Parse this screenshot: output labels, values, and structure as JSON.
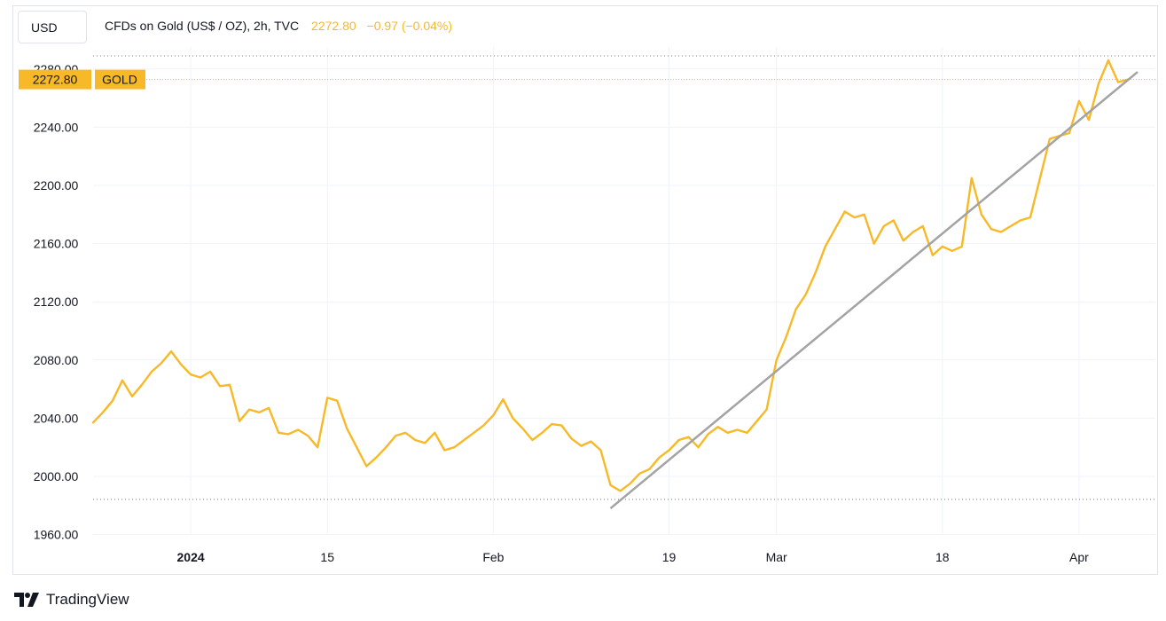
{
  "currency_button": {
    "label": "USD"
  },
  "legend": {
    "title": "CFDs on Gold (US$ / OZ), 2h, TVC",
    "price": "2272.80",
    "change": "−0.97 (−0.04%)"
  },
  "price_tag": {
    "value": "2272.80",
    "symbol": "GOLD"
  },
  "brand": {
    "name": "TradingView"
  },
  "colors": {
    "line": "#f7b928",
    "trend": "#a3a3a3",
    "grid": "#f0f3fa",
    "axis_text": "#131722"
  },
  "chart_data": {
    "type": "line",
    "title": "CFDs on Gold (US$ / OZ), 2h, TVC",
    "xlabel": "",
    "ylabel": "",
    "grid": true,
    "ylim": [
      1960,
      2290
    ],
    "y_ticks": [
      "1960.00",
      "2000.00",
      "2040.00",
      "2080.00",
      "2120.00",
      "2160.00",
      "2200.00",
      "2240.00",
      "2280.00"
    ],
    "y_tick_values": [
      1960,
      2000,
      2040,
      2080,
      2120,
      2160,
      2200,
      2240,
      2280
    ],
    "x_range": [
      "2023-12-22",
      "2024-04-07"
    ],
    "x_ticks": [
      {
        "label": "2024",
        "date": "2024-01-01",
        "bold": true
      },
      {
        "label": "15",
        "date": "2024-01-15"
      },
      {
        "label": "Feb",
        "date": "2024-02-01"
      },
      {
        "label": "19",
        "date": "2024-02-19"
      },
      {
        "label": "Mar",
        "date": "2024-03-01"
      },
      {
        "label": "18",
        "date": "2024-03-18"
      },
      {
        "label": "Apr",
        "date": "2024-04-01"
      }
    ],
    "series": [
      {
        "name": "GOLD",
        "points": [
          [
            "2023-12-22",
            2037
          ],
          [
            "2023-12-23",
            2044
          ],
          [
            "2023-12-24",
            2052
          ],
          [
            "2023-12-25",
            2066
          ],
          [
            "2023-12-26",
            2055
          ],
          [
            "2023-12-27",
            2063
          ],
          [
            "2023-12-28",
            2072
          ],
          [
            "2023-12-29",
            2078
          ],
          [
            "2023-12-30",
            2086
          ],
          [
            "2023-12-31",
            2077
          ],
          [
            "2024-01-01",
            2070
          ],
          [
            "2024-01-02",
            2068
          ],
          [
            "2024-01-03",
            2072
          ],
          [
            "2024-01-04",
            2062
          ],
          [
            "2024-01-05",
            2063
          ],
          [
            "2024-01-06",
            2038
          ],
          [
            "2024-01-07",
            2046
          ],
          [
            "2024-01-08",
            2044
          ],
          [
            "2024-01-09",
            2047
          ],
          [
            "2024-01-10",
            2030
          ],
          [
            "2024-01-11",
            2029
          ],
          [
            "2024-01-12",
            2032
          ],
          [
            "2024-01-13",
            2028
          ],
          [
            "2024-01-14",
            2020
          ],
          [
            "2024-01-15",
            2054
          ],
          [
            "2024-01-16",
            2052
          ],
          [
            "2024-01-17",
            2033
          ],
          [
            "2024-01-18",
            2020
          ],
          [
            "2024-01-19",
            2007
          ],
          [
            "2024-01-20",
            2013
          ],
          [
            "2024-01-21",
            2020
          ],
          [
            "2024-01-22",
            2028
          ],
          [
            "2024-01-23",
            2030
          ],
          [
            "2024-01-24",
            2025
          ],
          [
            "2024-01-25",
            2023
          ],
          [
            "2024-01-26",
            2030
          ],
          [
            "2024-01-27",
            2018
          ],
          [
            "2024-01-28",
            2020
          ],
          [
            "2024-01-29",
            2025
          ],
          [
            "2024-01-30",
            2030
          ],
          [
            "2024-01-31",
            2035
          ],
          [
            "2024-02-01",
            2042
          ],
          [
            "2024-02-02",
            2053
          ],
          [
            "2024-02-03",
            2040
          ],
          [
            "2024-02-04",
            2033
          ],
          [
            "2024-02-05",
            2025
          ],
          [
            "2024-02-06",
            2030
          ],
          [
            "2024-02-07",
            2036
          ],
          [
            "2024-02-08",
            2035
          ],
          [
            "2024-02-09",
            2026
          ],
          [
            "2024-02-10",
            2021
          ],
          [
            "2024-02-11",
            2024
          ],
          [
            "2024-02-12",
            2018
          ],
          [
            "2024-02-13",
            1994
          ],
          [
            "2024-02-14",
            1990
          ],
          [
            "2024-02-15",
            1995
          ],
          [
            "2024-02-16",
            2002
          ],
          [
            "2024-02-17",
            2005
          ],
          [
            "2024-02-18",
            2013
          ],
          [
            "2024-02-19",
            2018
          ],
          [
            "2024-02-20",
            2025
          ],
          [
            "2024-02-21",
            2027
          ],
          [
            "2024-02-22",
            2020
          ],
          [
            "2024-02-23",
            2029
          ],
          [
            "2024-02-24",
            2034
          ],
          [
            "2024-02-25",
            2030
          ],
          [
            "2024-02-26",
            2032
          ],
          [
            "2024-02-27",
            2030
          ],
          [
            "2024-02-28",
            2038
          ],
          [
            "2024-02-29",
            2046
          ],
          [
            "2024-03-01",
            2080
          ],
          [
            "2024-03-02",
            2096
          ],
          [
            "2024-03-03",
            2115
          ],
          [
            "2024-03-04",
            2125
          ],
          [
            "2024-03-05",
            2140
          ],
          [
            "2024-03-06",
            2158
          ],
          [
            "2024-03-07",
            2170
          ],
          [
            "2024-03-08",
            2182
          ],
          [
            "2024-03-09",
            2178
          ],
          [
            "2024-03-10",
            2180
          ],
          [
            "2024-03-11",
            2160
          ],
          [
            "2024-03-12",
            2172
          ],
          [
            "2024-03-13",
            2176
          ],
          [
            "2024-03-14",
            2162
          ],
          [
            "2024-03-15",
            2168
          ],
          [
            "2024-03-16",
            2172
          ],
          [
            "2024-03-17",
            2152
          ],
          [
            "2024-03-18",
            2158
          ],
          [
            "2024-03-19",
            2155
          ],
          [
            "2024-03-20",
            2158
          ],
          [
            "2024-03-21",
            2205
          ],
          [
            "2024-03-22",
            2180
          ],
          [
            "2024-03-23",
            2170
          ],
          [
            "2024-03-24",
            2168
          ],
          [
            "2024-03-25",
            2172
          ],
          [
            "2024-03-26",
            2176
          ],
          [
            "2024-03-27",
            2178
          ],
          [
            "2024-03-28",
            2205
          ],
          [
            "2024-03-29",
            2232
          ],
          [
            "2024-03-30",
            2234
          ],
          [
            "2024-03-31",
            2236
          ],
          [
            "2024-04-01",
            2258
          ],
          [
            "2024-04-02",
            2245
          ],
          [
            "2024-04-03",
            2270
          ],
          [
            "2024-04-04",
            2286
          ],
          [
            "2024-04-05",
            2271
          ],
          [
            "2024-04-06",
            2272.8
          ]
        ]
      }
    ],
    "trend_line": {
      "start": [
        "2024-02-13",
        1978
      ],
      "end": [
        "2024-04-07",
        2278
      ]
    },
    "current_price": 2272.8
  }
}
